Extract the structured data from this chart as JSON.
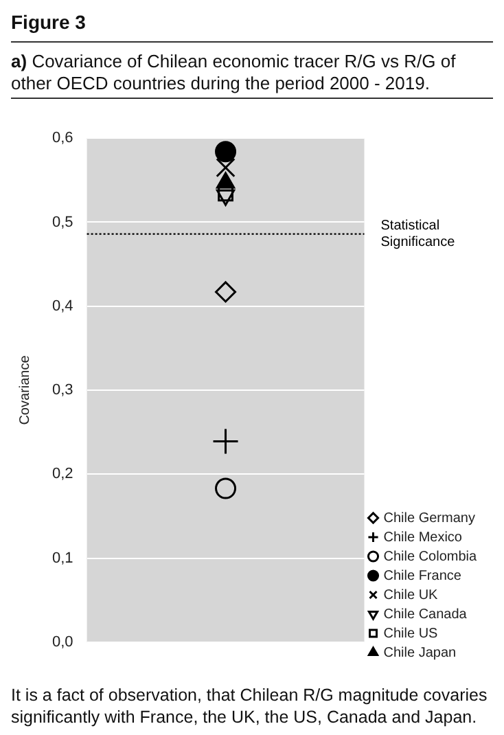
{
  "chart_data": {
    "type": "scatter",
    "title": "Figure 3",
    "subtitle": "a) Covariance of Chilean economic tracer R/G vs R/G of other OECD countries during the period 2000 - 2019.",
    "ylabel": "Covariance",
    "annotations": [
      "It is a fact of observation, that Chilean R/G magnitude covaries significantly with France, the UK, the US, Canada and Japan."
    ],
    "categories": [
      null
    ],
    "series": [
      {
        "name": "Chile Germany",
        "color": "#000000",
        "marker": "diamond",
        "values": [
          0.417
        ]
      },
      {
        "name": "Chile Mexico",
        "color": "#000000",
        "marker": "cross",
        "values": [
          0.239
        ]
      },
      {
        "name": "Chile Colombia",
        "color": "#000000",
        "marker": "circle",
        "values": [
          0.183
        ]
      },
      {
        "name": "Chile France",
        "color": "#000000",
        "marker": "circle-filled",
        "values": [
          0.584
        ]
      },
      {
        "name": "Chile UK",
        "color": "#000000",
        "marker": "x",
        "values": [
          0.565
        ]
      },
      {
        "name": "Chile Canada",
        "color": "#000000",
        "marker": "triangle-down",
        "values": [
          0.532
        ]
      },
      {
        "name": "Chile US",
        "color": "#000000",
        "marker": "square",
        "values": [
          0.534
        ]
      },
      {
        "name": "Chile Japan",
        "color": "#000000",
        "marker": "triangle-filled",
        "values": [
          0.547
        ]
      }
    ],
    "ylim": [
      0,
      0.6
    ],
    "yticks": [
      {
        "value": 0,
        "label": "0,0"
      },
      {
        "value": 0.1,
        "label": "0,1"
      },
      {
        "value": 0.2,
        "label": "0,2"
      },
      {
        "value": 0.3,
        "label": "0,3"
      },
      {
        "value": 0.4,
        "label": "0,4"
      },
      {
        "value": 0.5,
        "label": "0,5"
      },
      {
        "value": 0.6,
        "label": "0,6"
      }
    ],
    "grid": "y",
    "tick_labels": "y",
    "legend": "bottom right",
    "ref_lines": [
      {
        "axis": "y",
        "value": 0.486,
        "label": "Statistical Significance",
        "line_style": "dotted",
        "color": "#000000"
      }
    ]
  }
}
